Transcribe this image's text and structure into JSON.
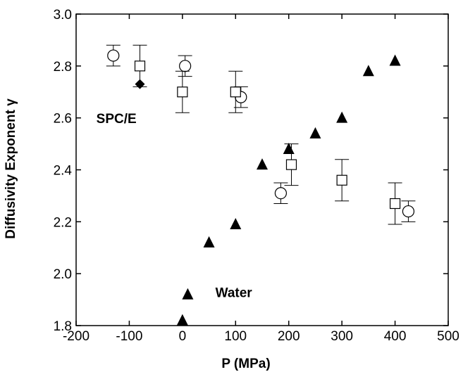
{
  "chart_data": {
    "type": "scatter",
    "title": "",
    "xlabel": "P (MPa)",
    "ylabel": "Diffusivity Exponent γ",
    "xlim": [
      -200,
      500
    ],
    "ylim": [
      1.8,
      3.0
    ],
    "x_ticks": [
      -200,
      -100,
      0,
      100,
      200,
      300,
      400,
      500
    ],
    "y_ticks": [
      1.8,
      2.0,
      2.2,
      2.4,
      2.6,
      2.8,
      3.0
    ],
    "x_tick_labels": [
      "-200",
      "-100",
      "0",
      "100",
      "200",
      "300",
      "400",
      "500"
    ],
    "y_tick_labels": [
      "1.8",
      "2.0",
      "2.2",
      "2.4",
      "2.6",
      "2.8",
      "3.0"
    ],
    "grid": false,
    "legend": "none",
    "series": [
      {
        "marker": "open-circle",
        "color": "#000000",
        "points": [
          {
            "x": -130,
            "y": 2.84,
            "yerr": 0.04
          },
          {
            "x": 5,
            "y": 2.8,
            "yerr": 0.04
          },
          {
            "x": 110,
            "y": 2.68,
            "yerr": 0.04
          },
          {
            "x": 185,
            "y": 2.31,
            "yerr": 0.04
          },
          {
            "x": 425,
            "y": 2.24,
            "yerr": 0.04
          }
        ]
      },
      {
        "marker": "open-square",
        "color": "#000000",
        "points": [
          {
            "x": -80,
            "y": 2.8,
            "yerr": 0.08
          },
          {
            "x": 0,
            "y": 2.7,
            "yerr": 0.08
          },
          {
            "x": 100,
            "y": 2.7,
            "yerr": 0.08
          },
          {
            "x": 205,
            "y": 2.42,
            "yerr": 0.08
          },
          {
            "x": 300,
            "y": 2.36,
            "yerr": 0.08
          },
          {
            "x": 400,
            "y": 2.27,
            "yerr": 0.08
          }
        ]
      },
      {
        "marker": "filled-diamond",
        "color": "#000000",
        "points": [
          {
            "x": -80,
            "y": 2.73
          }
        ]
      },
      {
        "marker": "filled-triangle",
        "color": "#000000",
        "points": [
          {
            "x": 0,
            "y": 1.82
          },
          {
            "x": 10,
            "y": 1.92
          },
          {
            "x": 50,
            "y": 2.12
          },
          {
            "x": 100,
            "y": 2.19
          },
          {
            "x": 150,
            "y": 2.42
          },
          {
            "x": 200,
            "y": 2.48
          },
          {
            "x": 250,
            "y": 2.54
          },
          {
            "x": 300,
            "y": 2.6
          },
          {
            "x": 350,
            "y": 2.78
          },
          {
            "x": 400,
            "y": 2.82
          }
        ]
      }
    ],
    "annotations": [
      {
        "text": "SPC/E",
        "x": -162,
        "y": 2.58
      },
      {
        "text": "Water",
        "x": 62,
        "y": 1.91
      },
      {
        "text": "▲",
        "x": 10,
        "y": 1.92
      }
    ]
  }
}
